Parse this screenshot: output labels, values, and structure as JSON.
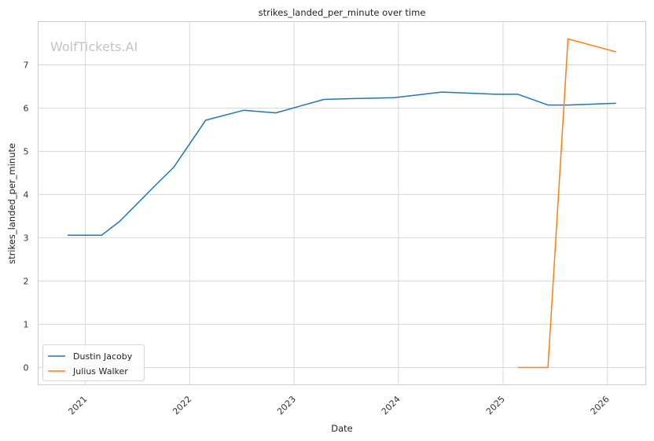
{
  "chart_data": {
    "type": "line",
    "title": "strikes_landed_per_minute over time",
    "xlabel": "Date",
    "ylabel": "strikes_landed_per_minute",
    "watermark": "WolfTickets.AI",
    "x_ticks": [
      "2021",
      "2022",
      "2023",
      "2024",
      "2025",
      "2026"
    ],
    "y_ticks": [
      "0",
      "1",
      "2",
      "3",
      "4",
      "5",
      "6",
      "7"
    ],
    "xlim": [
      "2020-07-20",
      "2026-05-15"
    ],
    "ylim": [
      -0.4,
      8.0
    ],
    "grid": true,
    "legend_position": "lower-left",
    "series": [
      {
        "name": "Dustin Jacoby",
        "color": "#1f77b4",
        "points": [
          [
            "2020-10-31",
            3.06
          ],
          [
            "2021-02-27",
            3.06
          ],
          [
            "2021-05-01",
            3.38
          ],
          [
            "2021-09-04",
            4.22
          ],
          [
            "2021-11-06",
            4.63
          ],
          [
            "2022-02-26",
            5.72
          ],
          [
            "2022-07-09",
            5.95
          ],
          [
            "2022-10-29",
            5.89
          ],
          [
            "2023-04-15",
            6.2
          ],
          [
            "2023-07-29",
            6.22
          ],
          [
            "2023-12-16",
            6.24
          ],
          [
            "2024-06-01",
            6.37
          ],
          [
            "2024-12-07",
            6.32
          ],
          [
            "2025-02-22",
            6.32
          ],
          [
            "2025-06-07",
            6.07
          ],
          [
            "2025-08-16",
            6.07
          ],
          [
            "2026-01-31",
            6.11
          ]
        ]
      },
      {
        "name": "Julius Walker",
        "color": "#ff7f0e",
        "points": [
          [
            "2025-02-22",
            0.0
          ],
          [
            "2025-06-07",
            0.0
          ],
          [
            "2025-08-16",
            7.6
          ],
          [
            "2026-01-31",
            7.3
          ]
        ]
      }
    ]
  }
}
